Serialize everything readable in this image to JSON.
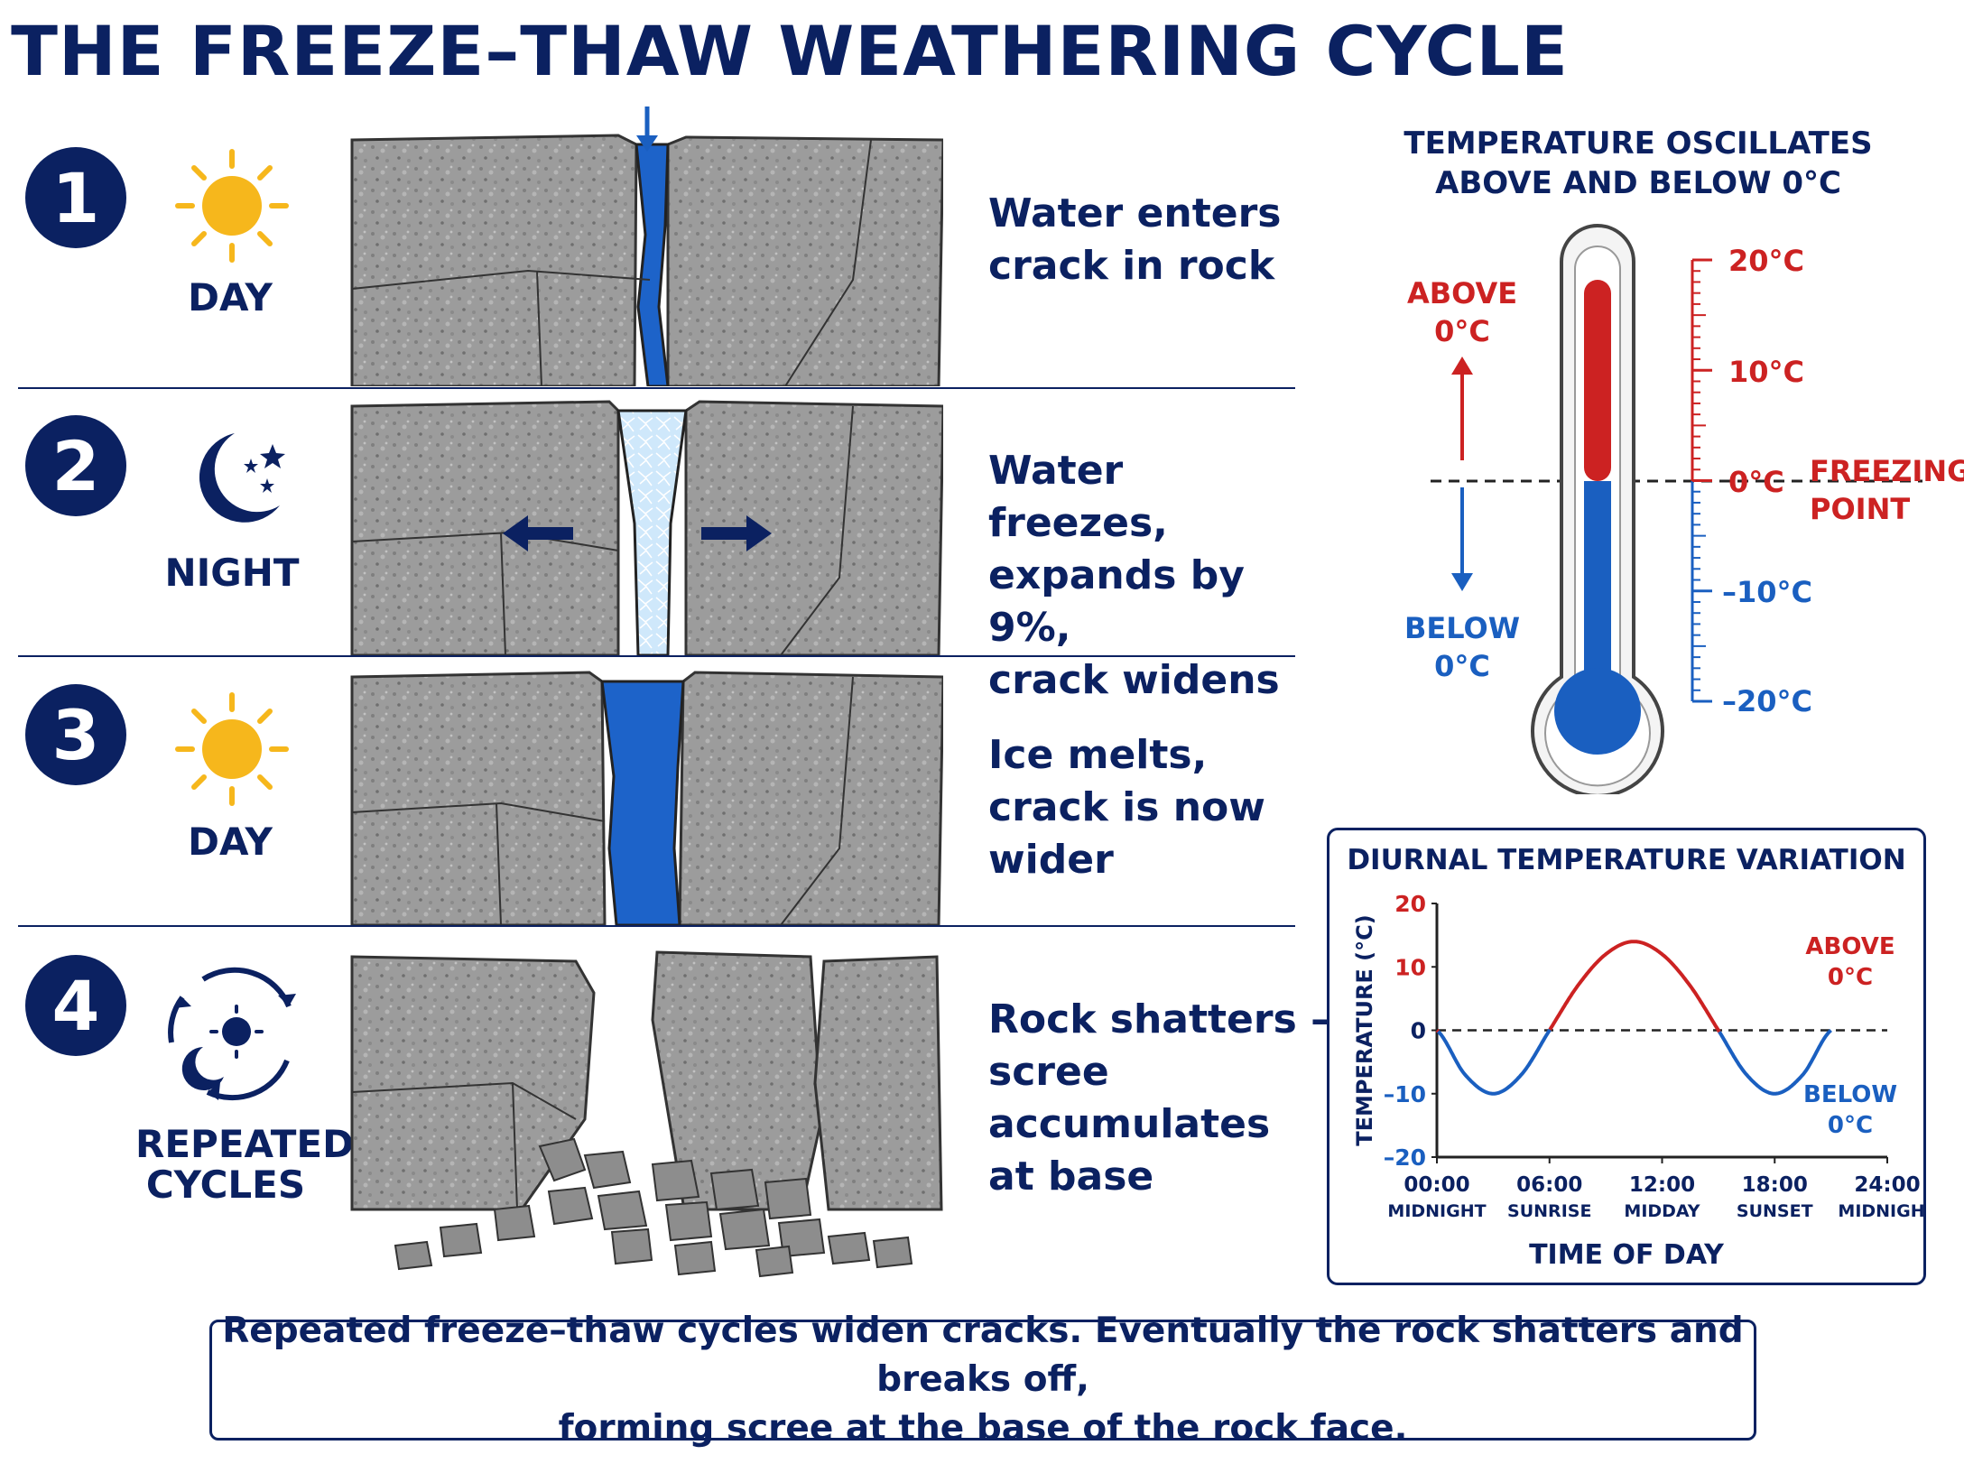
{
  "title": "THE FREEZE–THAW WEATHERING CYCLE",
  "steps": [
    {
      "number": "1",
      "icon": "sun-icon",
      "label": "DAY",
      "desc_line1": "Water enters",
      "desc_line2": "crack in rock",
      "desc_line3": ""
    },
    {
      "number": "2",
      "icon": "moon-stars-icon",
      "label": "NIGHT",
      "desc_line1": "Water freezes,",
      "desc_line2": "expands by 9%,",
      "desc_line3": "crack widens"
    },
    {
      "number": "3",
      "icon": "sun-icon",
      "label": "DAY",
      "desc_line1": "Ice melts,",
      "desc_line2": "crack is now wider",
      "desc_line3": ""
    },
    {
      "number": "4",
      "icon": "cycle-icon",
      "label_line1": "REPEATED",
      "label_line2": "CYCLES",
      "desc_line1": "Rock shatters –",
      "desc_line2": "scree accumulates",
      "desc_line3": "at base"
    }
  ],
  "thermometer": {
    "title_line1": "TEMPERATURE OSCILLATES",
    "title_line2": "ABOVE AND BELOW 0°C",
    "above_line1": "ABOVE",
    "above_line2": "0°C",
    "below_line1": "BELOW",
    "below_line2": "0°C",
    "ticks": [
      "20°C",
      "10°C",
      "0°C",
      "–10°C",
      "–20°C"
    ],
    "freezing_line1": "FREEZING",
    "freezing_line2": "POINT",
    "level_celsius": 0
  },
  "chart_data": {
    "type": "line",
    "title": "DIURNAL TEMPERATURE VARIATION",
    "ylabel": "TEMPERATURE (°C)",
    "xlabel": "TIME OF DAY",
    "ylim": [
      -20,
      20
    ],
    "xlim": [
      0,
      24
    ],
    "yticks": [
      "20",
      "10",
      "0",
      "–10",
      "–20"
    ],
    "xticks": [
      {
        "time": "00:00",
        "name": "MIDNIGHT"
      },
      {
        "time": "06:00",
        "name": "SUNRISE"
      },
      {
        "time": "12:00",
        "name": "MIDDAY"
      },
      {
        "time": "18:00",
        "name": "SUNSET"
      },
      {
        "time": "24:00",
        "name": "MIDNIGHT"
      }
    ],
    "reference_line_y": 0,
    "x": [
      0,
      1.5,
      3,
      4.5,
      6,
      7.5,
      9,
      10.5,
      12,
      13.5,
      15,
      16.5,
      18,
      19.5,
      21
    ],
    "y": [
      0,
      -7,
      -10,
      -7,
      0,
      7,
      12,
      14,
      12,
      7,
      0,
      -7,
      -10,
      -7,
      0
    ],
    "annotations": {
      "above_line1": "ABOVE",
      "above_line2": "0°C",
      "below_line1": "BELOW",
      "below_line2": "0°C"
    },
    "colors": {
      "above": "#cc2222",
      "below": "#1a5fc0"
    }
  },
  "footer_line1": "Repeated freeze–thaw cycles widen cracks. Eventually the rock shatters and breaks off,",
  "footer_line2": "forming scree at the base of the rock face.",
  "colors": {
    "navy": "#0b2161",
    "red": "#cc2222",
    "blue": "#1a5fc0",
    "water": "#1d63c9",
    "ice": "#cfe8fb",
    "sun": "#f6b71c",
    "rock": "#9a9a9a"
  }
}
